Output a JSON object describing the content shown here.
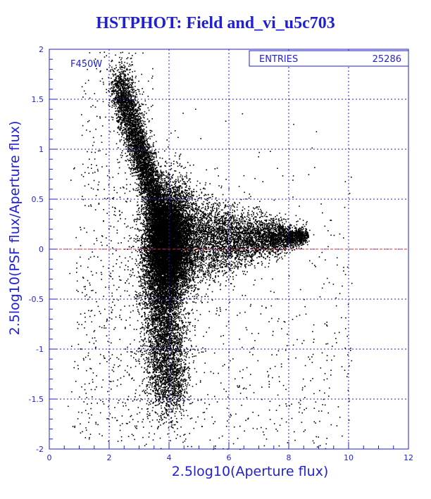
{
  "chart_data": {
    "type": "scatter",
    "title": "HSTPHOT: Field and_vi_u5c703",
    "xlabel": "2.5log10(Aperture flux)",
    "ylabel": "2.5log10(PSF flux/Aperture flux)",
    "xlim": [
      0,
      12
    ],
    "ylim": [
      -2,
      2
    ],
    "x_ticks": [
      "0",
      "2",
      "4",
      "6",
      "8",
      "10",
      "12"
    ],
    "y_ticks": [
      "-2",
      "-1.5",
      "-1",
      "-0.5",
      "0",
      "0.5",
      "1",
      "1.5",
      "2"
    ],
    "grid": true,
    "filter_label": "F450W",
    "stats_box": {
      "label": "ENTRIES",
      "value": "25286"
    },
    "reference_line": {
      "y": 0,
      "color": "#e03030",
      "style": "dashed"
    },
    "colors": {
      "axes": "#1f1fd6",
      "points": "#000000"
    },
    "series": [
      {
        "distribution": "dense wedge converging near x=3.5, y=0 and tapering to x≈8.5, y≈0.15; broad vertical spread at x≈2.5–4.5",
        "points_sample": [
          [
            2.5,
            1.6
          ],
          [
            2.8,
            1.4
          ],
          [
            3.0,
            1.2
          ],
          [
            3.3,
            0.8
          ],
          [
            3.6,
            0.5
          ],
          [
            3.8,
            0.3
          ],
          [
            4.0,
            0.2
          ],
          [
            4.5,
            0.15
          ],
          [
            5.0,
            0.12
          ],
          [
            5.5,
            0.1
          ],
          [
            6.0,
            0.1
          ],
          [
            6.5,
            0.1
          ],
          [
            7.0,
            0.12
          ],
          [
            7.5,
            0.13
          ],
          [
            8.0,
            0.14
          ],
          [
            8.5,
            0.15
          ],
          [
            3.5,
            -0.2
          ],
          [
            3.8,
            -0.4
          ],
          [
            4.0,
            -0.6
          ],
          [
            4.2,
            -0.8
          ],
          [
            4.3,
            -1.0
          ],
          [
            3.9,
            -1.3
          ],
          [
            4.5,
            -0.3
          ],
          [
            5.0,
            -0.2
          ],
          [
            5.5,
            -0.1
          ]
        ]
      }
    ]
  }
}
